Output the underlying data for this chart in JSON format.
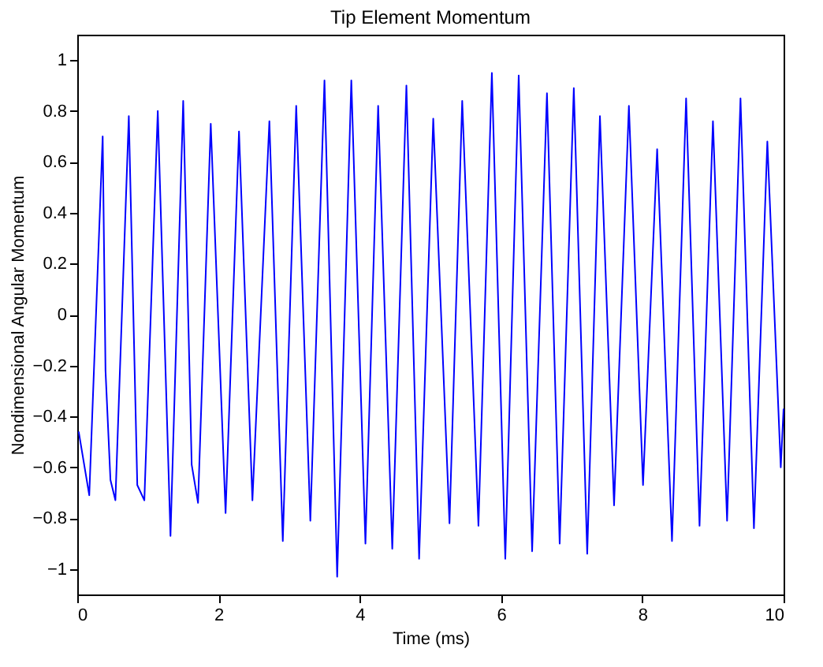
{
  "chart_data": {
    "type": "line",
    "title": "Tip Element Momentum",
    "xlabel": "Time (ms)",
    "ylabel": "Nondimensional Angular Momentum",
    "xlim": [
      0,
      10
    ],
    "xticks": [
      0,
      2,
      4,
      6,
      8,
      10
    ],
    "ylim": [
      -1.1,
      1.1
    ],
    "yticks": [
      -1,
      -0.8,
      -0.6,
      -0.4,
      -0.2,
      0,
      0.2,
      0.4,
      0.6,
      0.8,
      1
    ],
    "grid": false,
    "series": [
      {
        "color": "#0000ff",
        "x": [
          0.02,
          0.17,
          0.36,
          0.4,
          0.47,
          0.54,
          0.73,
          0.85,
          0.95,
          1.14,
          1.32,
          1.5,
          1.62,
          1.71,
          1.89,
          2.1,
          2.29,
          2.48,
          2.72,
          2.91,
          3.1,
          3.3,
          3.5,
          3.68,
          3.88,
          4.08,
          4.26,
          4.46,
          4.66,
          4.84,
          5.04,
          5.27,
          5.45,
          5.68,
          5.87,
          6.06,
          6.25,
          6.44,
          6.65,
          6.83,
          7.03,
          7.22,
          7.4,
          7.6,
          7.81,
          8.01,
          8.21,
          8.42,
          8.62,
          8.81,
          9.0,
          9.2,
          9.39,
          9.58,
          9.77,
          9.96,
          10.0
        ],
        "values": [
          -0.46,
          -0.71,
          0.7,
          -0.22,
          -0.65,
          -0.73,
          0.78,
          -0.67,
          -0.73,
          0.8,
          -0.87,
          0.84,
          -0.59,
          -0.74,
          0.75,
          -0.78,
          0.72,
          -0.73,
          0.76,
          -0.89,
          0.82,
          -0.81,
          0.92,
          -1.03,
          0.92,
          -0.9,
          0.82,
          -0.92,
          0.9,
          -0.96,
          0.77,
          -0.82,
          0.84,
          -0.83,
          0.95,
          -0.96,
          0.94,
          -0.93,
          0.87,
          -0.9,
          0.89,
          -0.94,
          0.78,
          -0.75,
          0.82,
          -0.67,
          0.65,
          -0.89,
          0.85,
          -0.83,
          0.76,
          -0.81,
          0.85,
          -0.84,
          0.68,
          -0.6,
          -0.37
        ]
      }
    ]
  }
}
